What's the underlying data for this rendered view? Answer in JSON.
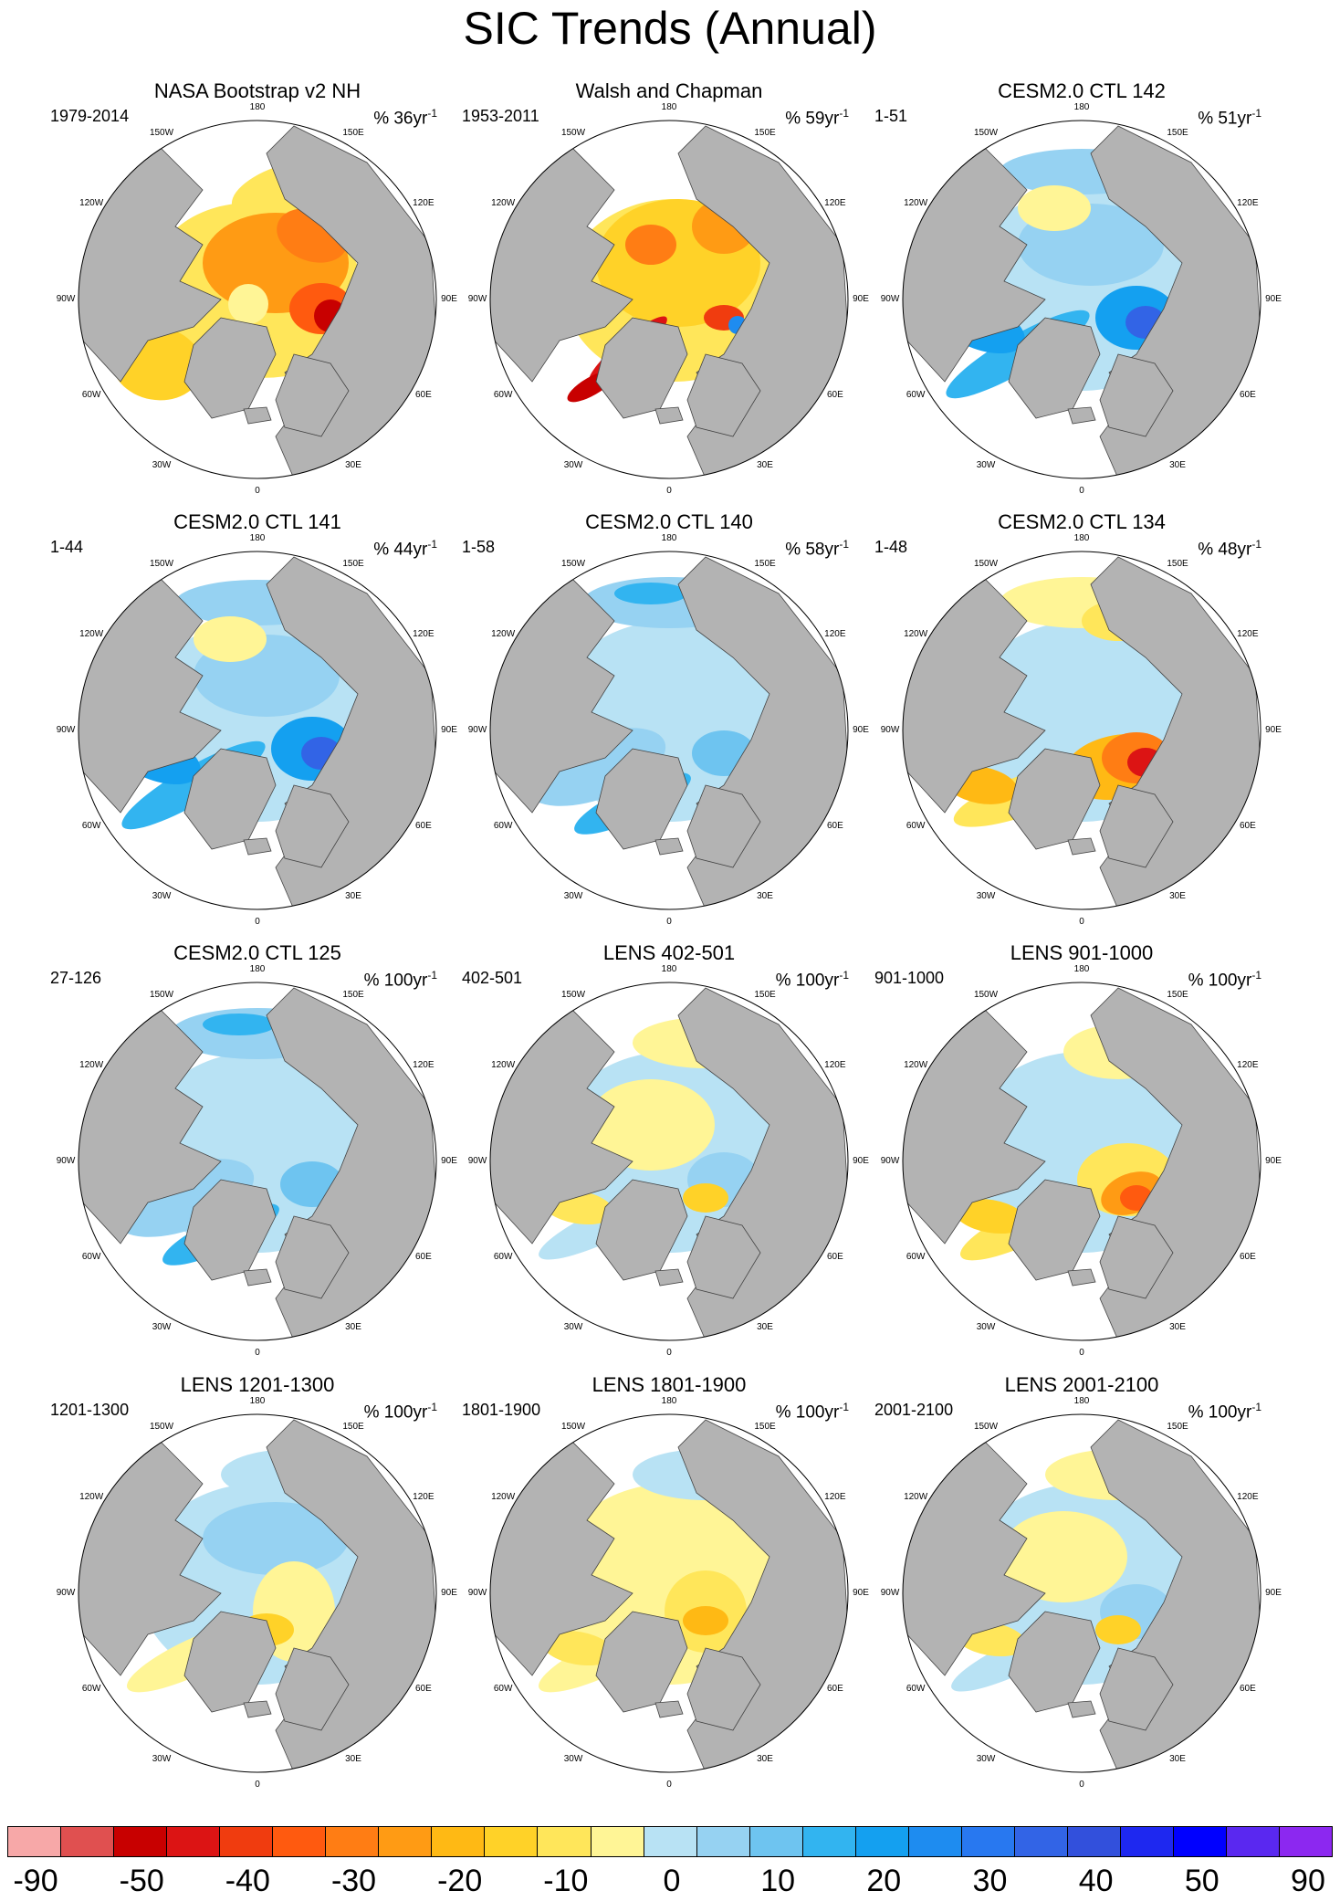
{
  "figure": {
    "title": "SIC Trends (Annual)"
  },
  "lon_labels": [
    "180",
    "150E",
    "120E",
    "90E",
    "60E",
    "30E",
    "0",
    "30W",
    "60W",
    "90W",
    "120W",
    "150W"
  ],
  "panels": [
    {
      "title": "NASA Bootstrap v2 NH",
      "period": "1979-2014",
      "units": "% 36yr",
      "unit_exp": "-1",
      "pattern": "obs_nasa"
    },
    {
      "title": "Walsh and Chapman",
      "period": "1953-2011",
      "units": "% 59yr",
      "unit_exp": "-1",
      "pattern": "obs_walsh"
    },
    {
      "title": "CESM2.0 CTL 142",
      "period": "1-51",
      "units": "% 51yr",
      "unit_exp": "-1",
      "pattern": "blue_strong"
    },
    {
      "title": "CESM2.0 CTL 141",
      "period": "1-44",
      "units": "% 44yr",
      "unit_exp": "-1",
      "pattern": "blue_strong"
    },
    {
      "title": "CESM2.0 CTL 140",
      "period": "1-58",
      "units": "% 58yr",
      "unit_exp": "-1",
      "pattern": "blue_light"
    },
    {
      "title": "CESM2.0 CTL 134",
      "period": "1-48",
      "units": "% 48yr",
      "unit_exp": "-1",
      "pattern": "red_strong"
    },
    {
      "title": "CESM2.0 CTL 125",
      "period": "27-126",
      "units": "% 100yr",
      "unit_exp": "-1",
      "pattern": "blue_light"
    },
    {
      "title": "LENS 402-501",
      "period": "402-501",
      "units": "% 100yr",
      "unit_exp": "-1",
      "pattern": "mixed_yellow"
    },
    {
      "title": "LENS 901-1000",
      "period": "901-1000",
      "units": "% 100yr",
      "unit_exp": "-1",
      "pattern": "red_mid"
    },
    {
      "title": "LENS 1201-1300",
      "period": "1201-1300",
      "units": "% 100yr",
      "unit_exp": "-1",
      "pattern": "mixed_blue"
    },
    {
      "title": "LENS 1801-1900",
      "period": "1801-1900",
      "units": "% 100yr",
      "unit_exp": "-1",
      "pattern": "yellow"
    },
    {
      "title": "LENS 2001-2100",
      "period": "2001-2100",
      "units": "% 100yr",
      "unit_exp": "-1",
      "pattern": "mixed_yellow"
    }
  ],
  "colorbar": {
    "colors": [
      "#f7a8a8",
      "#e05050",
      "#c80000",
      "#dc1414",
      "#f03c0f",
      "#ff5a0f",
      "#ff7d14",
      "#ff9b14",
      "#ffb914",
      "#ffd228",
      "#ffe65a",
      "#fff596",
      "#b8e2f4",
      "#96d2f2",
      "#6ec4f0",
      "#32b4f0",
      "#14a0f0",
      "#1e8cf0",
      "#2878f0",
      "#3264e6",
      "#3250dc",
      "#1e28f0",
      "#0000ff",
      "#5a28f0",
      "#8c28f0"
    ],
    "labels": [
      "-90",
      "-50",
      "-40",
      "-30",
      "-20",
      "-10",
      "0",
      "10",
      "20",
      "30",
      "40",
      "50",
      "90"
    ]
  }
}
